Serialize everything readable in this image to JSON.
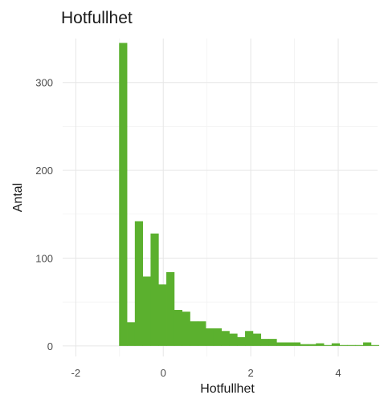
{
  "chart_data": {
    "type": "bar",
    "title": "Hotfullhet",
    "xlabel": "Hotfullhet",
    "ylabel": "Antal",
    "xlim": [
      -2.3,
      4.9
    ],
    "ylim": [
      -12,
      350
    ],
    "x_ticks": [
      -2,
      0,
      2,
      4
    ],
    "y_ticks": [
      0,
      100,
      200,
      300
    ],
    "grid": true,
    "legend": "none",
    "bar_color": "#5bb02e",
    "bin_width": 0.18,
    "bins": [
      {
        "x": -0.92,
        "count": 345
      },
      {
        "x": -0.74,
        "count": 27
      },
      {
        "x": -0.56,
        "count": 142
      },
      {
        "x": -0.38,
        "count": 79
      },
      {
        "x": -0.2,
        "count": 128
      },
      {
        "x": -0.02,
        "count": 70
      },
      {
        "x": 0.16,
        "count": 84
      },
      {
        "x": 0.34,
        "count": 41
      },
      {
        "x": 0.52,
        "count": 39
      },
      {
        "x": 0.7,
        "count": 28
      },
      {
        "x": 0.88,
        "count": 28
      },
      {
        "x": 1.06,
        "count": 20
      },
      {
        "x": 1.24,
        "count": 20
      },
      {
        "x": 1.42,
        "count": 17
      },
      {
        "x": 1.6,
        "count": 14
      },
      {
        "x": 1.78,
        "count": 10
      },
      {
        "x": 1.96,
        "count": 17
      },
      {
        "x": 2.14,
        "count": 14
      },
      {
        "x": 2.32,
        "count": 8
      },
      {
        "x": 2.5,
        "count": 8
      },
      {
        "x": 2.68,
        "count": 4
      },
      {
        "x": 2.86,
        "count": 4
      },
      {
        "x": 3.04,
        "count": 4
      },
      {
        "x": 3.22,
        "count": 2
      },
      {
        "x": 3.4,
        "count": 2
      },
      {
        "x": 3.58,
        "count": 3
      },
      {
        "x": 3.76,
        "count": 1
      },
      {
        "x": 3.94,
        "count": 3
      },
      {
        "x": 4.12,
        "count": 1
      },
      {
        "x": 4.3,
        "count": 1
      },
      {
        "x": 4.48,
        "count": 1
      },
      {
        "x": 4.66,
        "count": 4
      },
      {
        "x": 4.84,
        "count": 1
      }
    ]
  }
}
